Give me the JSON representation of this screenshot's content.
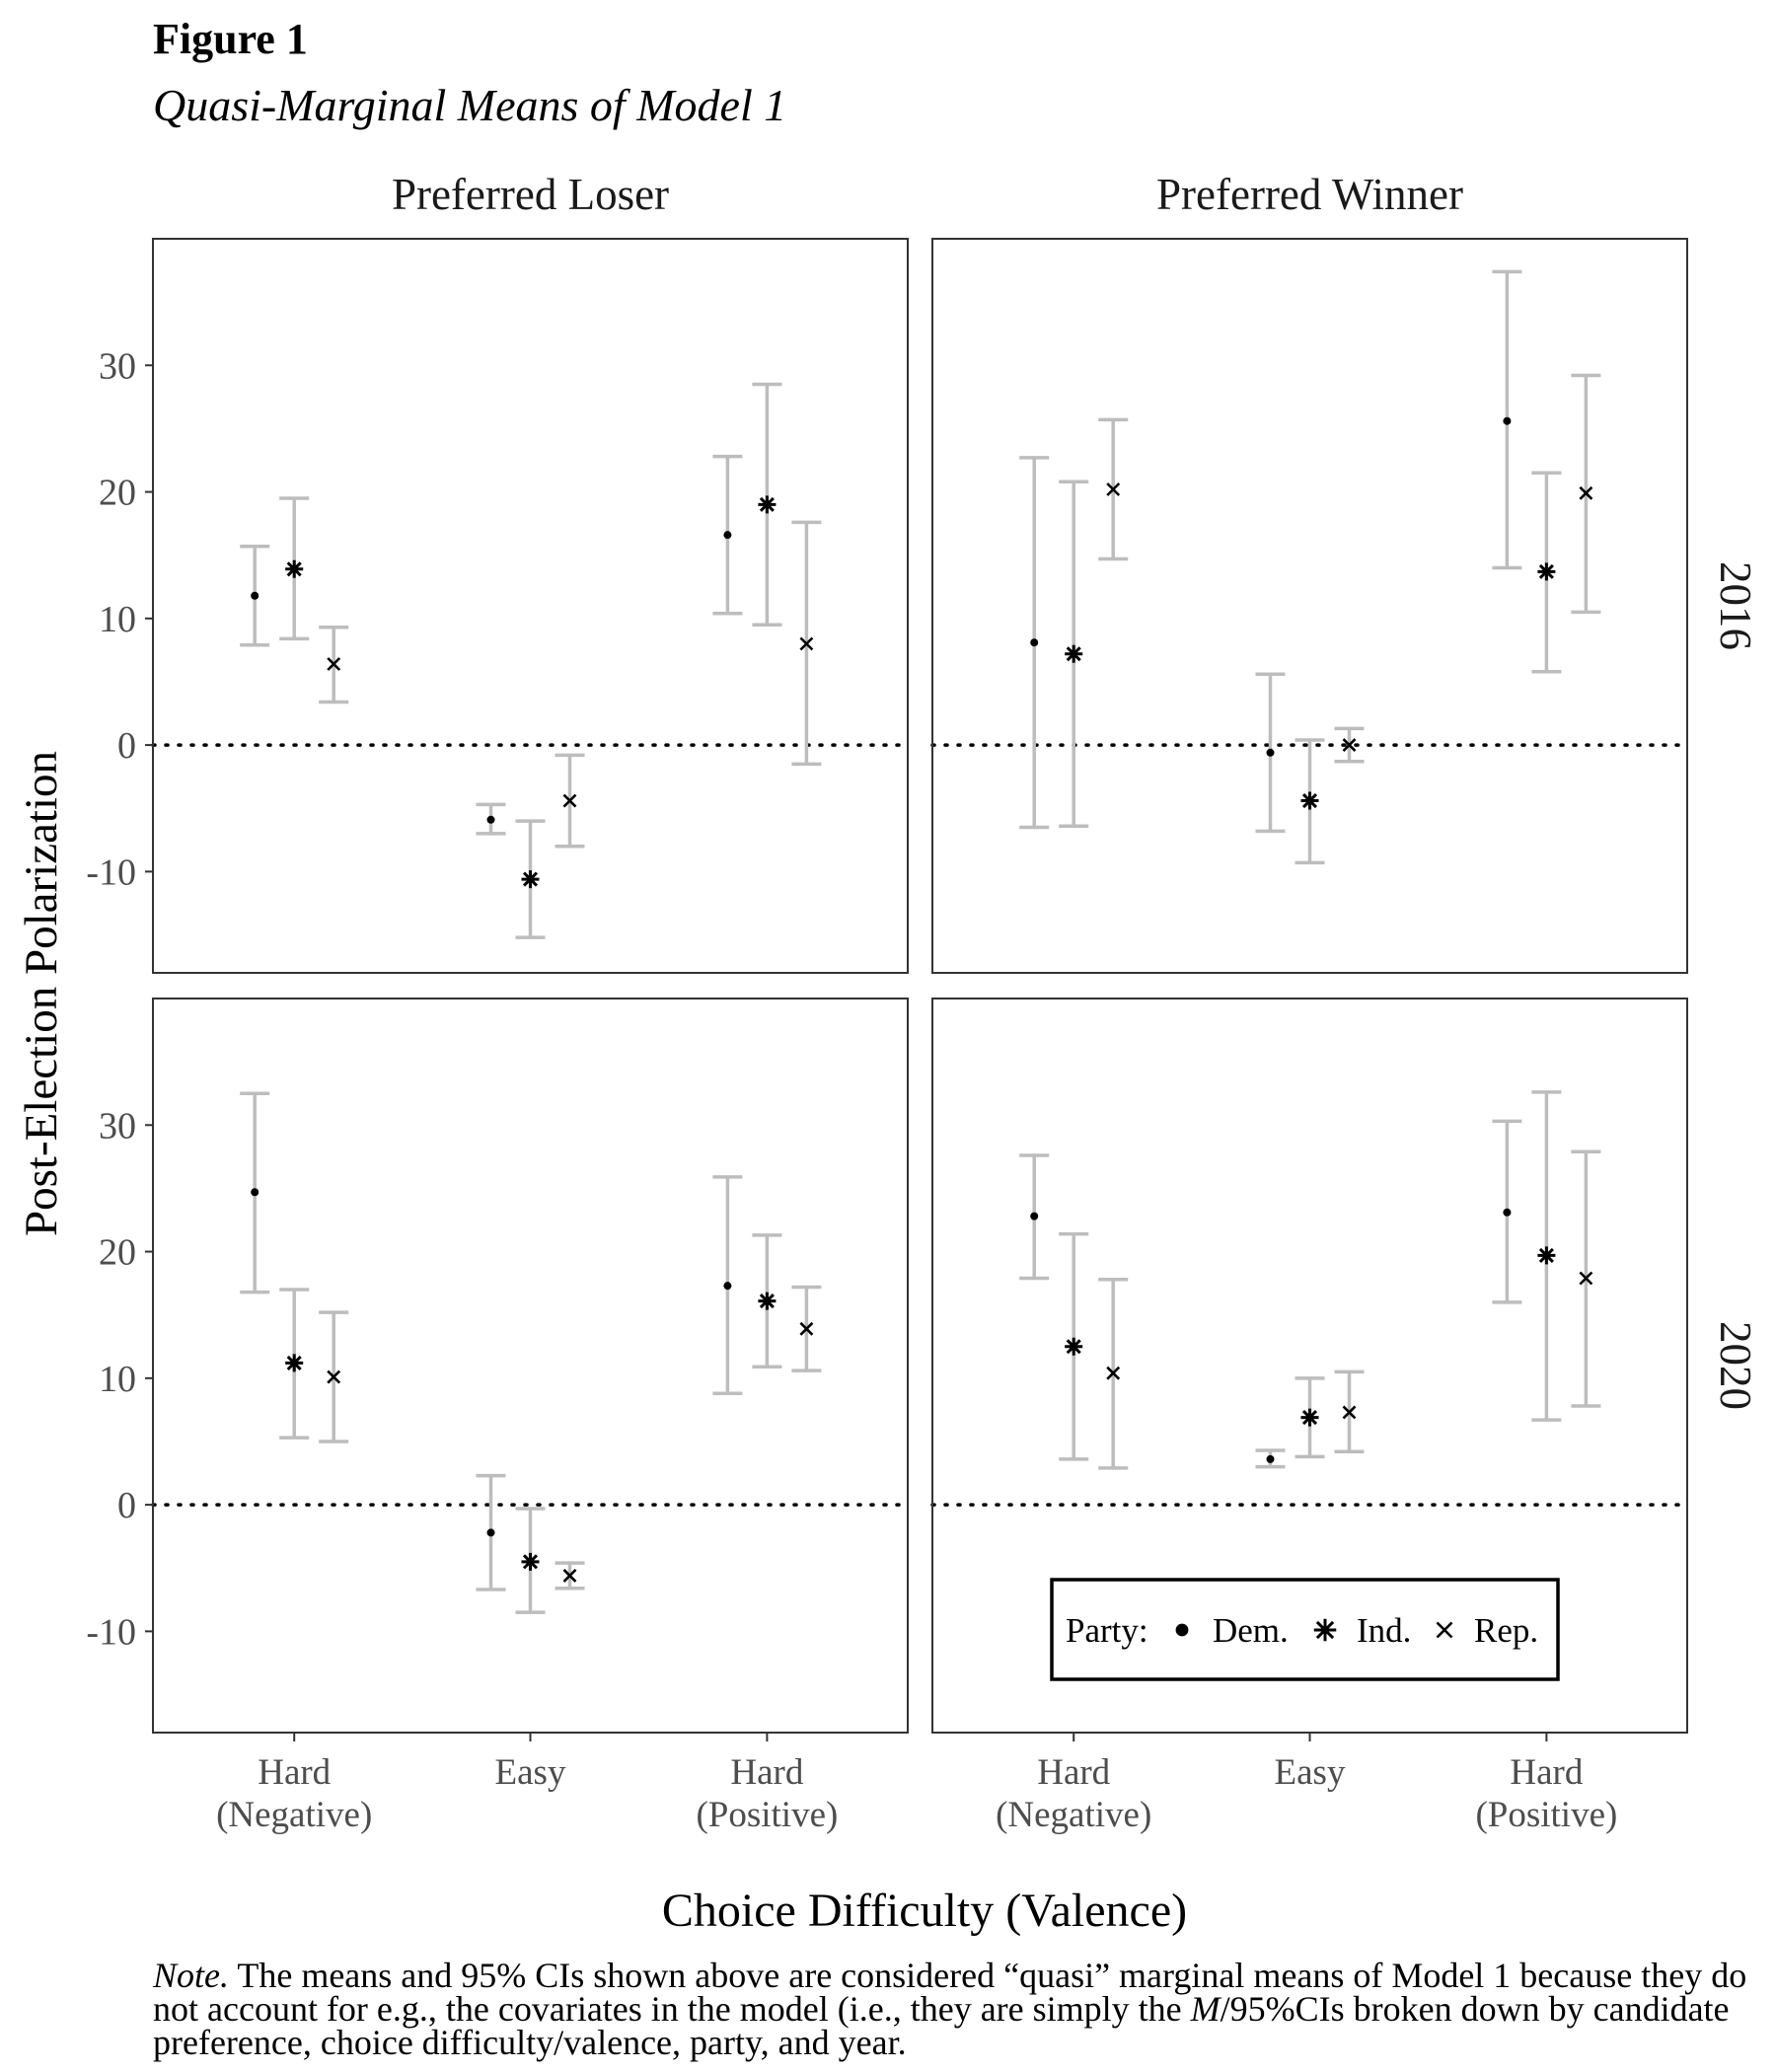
{
  "figure": {
    "label": "Figure 1",
    "title": "Quasi-Marginal Means of Model 1"
  },
  "note": {
    "lead": "Note.",
    "text_1": " The means and 95% CIs shown above are considered “quasi” marginal means of Model 1 because they do not account for e.g., the covariates in the model (i.e., they are simply the ",
    "m": "M",
    "text_2": "/95%CIs broken down by candidate preference, choice difficulty/valence, party, and year."
  },
  "chart_data": {
    "type": "scatter",
    "subtype": "point-with-error-bars, faceted",
    "xlabel": "Choice Difficulty (Valence)",
    "ylabel": "Post-Election Polarization",
    "categories": [
      [
        "Hard",
        "(Negative)"
      ],
      [
        "Easy"
      ],
      [
        "Hard",
        "(Positive)"
      ]
    ],
    "yticks": [
      -10,
      0,
      10,
      20,
      30
    ],
    "ylim": [
      -18,
      40
    ],
    "reference_line": 0,
    "facet_cols": [
      "Preferred Loser",
      "Preferred Winner"
    ],
    "facet_rows": [
      "2016",
      "2020"
    ],
    "legend": {
      "title": "Party:",
      "position": "bottom-right",
      "entries": [
        {
          "key": "dem",
          "label": "Dem.",
          "shape": "dot"
        },
        {
          "key": "ind",
          "label": "Ind.",
          "shape": "asterisk"
        },
        {
          "key": "rep",
          "label": "Rep.",
          "shape": "cross"
        }
      ]
    },
    "colors": {
      "error_bar": "#bdbdbd",
      "point": "#000000"
    },
    "panels": [
      {
        "col": "Preferred Loser",
        "row": "2016",
        "series": [
          {
            "party": "dem",
            "mean": [
              11.8,
              -5.9,
              16.6
            ],
            "lower": [
              7.9,
              -7.0,
              10.4
            ],
            "upper": [
              15.7,
              -4.7,
              22.8
            ]
          },
          {
            "party": "ind",
            "mean": [
              13.9,
              -10.6,
              19.0
            ],
            "lower": [
              8.4,
              -15.2,
              9.5
            ],
            "upper": [
              19.5,
              -6.0,
              28.5
            ]
          },
          {
            "party": "rep",
            "mean": [
              6.4,
              -4.4,
              8.0
            ],
            "lower": [
              3.4,
              -8.0,
              -1.5
            ],
            "upper": [
              9.3,
              -0.8,
              17.6
            ]
          }
        ]
      },
      {
        "col": "Preferred Winner",
        "row": "2016",
        "series": [
          {
            "party": "dem",
            "mean": [
              8.1,
              -0.6,
              25.6
            ],
            "lower": [
              -6.5,
              -6.8,
              14.0
            ],
            "upper": [
              22.7,
              5.6,
              37.4
            ]
          },
          {
            "party": "ind",
            "mean": [
              7.2,
              -4.4,
              13.7
            ],
            "lower": [
              -6.4,
              -9.3,
              5.8
            ],
            "upper": [
              20.8,
              0.4,
              21.5
            ]
          },
          {
            "party": "rep",
            "mean": [
              20.2,
              0.0,
              19.9
            ],
            "lower": [
              14.7,
              -1.3,
              10.5
            ],
            "upper": [
              25.7,
              1.3,
              29.2
            ]
          }
        ]
      },
      {
        "col": "Preferred Loser",
        "row": "2020",
        "series": [
          {
            "party": "dem",
            "mean": [
              24.7,
              -2.2,
              17.3
            ],
            "lower": [
              16.8,
              -6.7,
              8.8
            ],
            "upper": [
              32.5,
              2.3,
              25.9
            ]
          },
          {
            "party": "ind",
            "mean": [
              11.2,
              -4.5,
              16.1
            ],
            "lower": [
              5.3,
              -8.5,
              10.9
            ],
            "upper": [
              17.0,
              -0.3,
              21.3
            ]
          },
          {
            "party": "rep",
            "mean": [
              10.1,
              -5.6,
              13.9
            ],
            "lower": [
              5.0,
              -6.6,
              10.6
            ],
            "upper": [
              15.2,
              -4.6,
              17.2
            ]
          }
        ]
      },
      {
        "col": "Preferred Winner",
        "row": "2020",
        "series": [
          {
            "party": "dem",
            "mean": [
              22.8,
              3.6,
              23.1
            ],
            "lower": [
              17.9,
              3.0,
              16.0
            ],
            "upper": [
              27.6,
              4.3,
              30.3
            ]
          },
          {
            "party": "ind",
            "mean": [
              12.5,
              6.9,
              19.7
            ],
            "lower": [
              3.6,
              3.8,
              6.7
            ],
            "upper": [
              21.4,
              10.0,
              32.6
            ]
          },
          {
            "party": "rep",
            "mean": [
              10.4,
              7.3,
              17.9
            ],
            "lower": [
              2.9,
              4.2,
              7.8
            ],
            "upper": [
              17.8,
              10.5,
              27.9
            ]
          }
        ]
      }
    ]
  }
}
